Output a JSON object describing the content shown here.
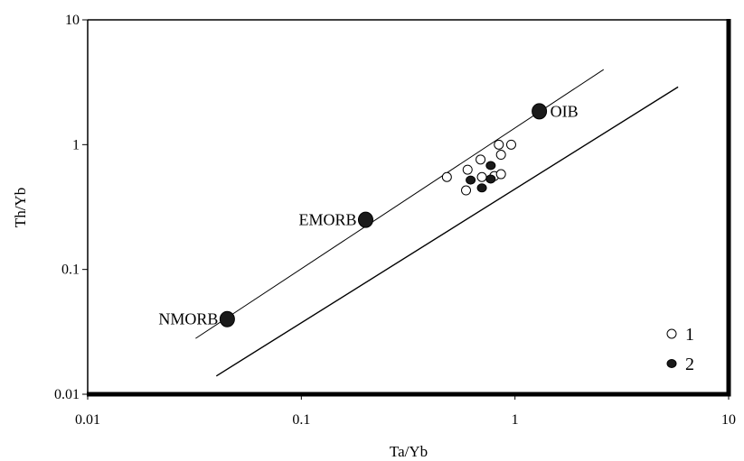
{
  "chart_data": {
    "type": "scatter",
    "title": "",
    "xlabel": "Ta/Yb",
    "ylabel": "Th/Yb",
    "x_scale": "log",
    "y_scale": "log",
    "xlim": [
      0.01,
      10
    ],
    "ylim": [
      0.01,
      10
    ],
    "x_ticks": [
      {
        "value": 0.01,
        "label": "0.01"
      },
      {
        "value": 0.1,
        "label": "0.1"
      },
      {
        "value": 1,
        "label": "1"
      },
      {
        "value": 10,
        "label": "10"
      }
    ],
    "y_ticks": [
      {
        "value": 0.01,
        "label": "0.01"
      },
      {
        "value": 0.1,
        "label": "0.1"
      },
      {
        "value": 1,
        "label": "1"
      },
      {
        "value": 10,
        "label": "10"
      }
    ],
    "grid": false,
    "legend_position": "bottom-right",
    "lines": [
      {
        "from": [
          0.032,
          0.028
        ],
        "to": [
          2.6,
          4.0
        ]
      },
      {
        "from": [
          0.04,
          0.014
        ],
        "to": [
          5.8,
          2.9
        ]
      }
    ],
    "reference_points": [
      {
        "label": "NMORB",
        "x": 0.045,
        "y": 0.04
      },
      {
        "label": "EMORB",
        "x": 0.2,
        "y": 0.25
      },
      {
        "label": "OIB",
        "x": 1.3,
        "y": 1.85
      }
    ],
    "series": [
      {
        "name": "1",
        "marker": "open-circle",
        "points": [
          {
            "x": 0.48,
            "y": 0.55
          },
          {
            "x": 0.59,
            "y": 0.43
          },
          {
            "x": 0.6,
            "y": 0.63
          },
          {
            "x": 0.69,
            "y": 0.76
          },
          {
            "x": 0.7,
            "y": 0.55
          },
          {
            "x": 0.8,
            "y": 0.56
          },
          {
            "x": 0.84,
            "y": 1.0
          },
          {
            "x": 0.86,
            "y": 0.83
          },
          {
            "x": 0.86,
            "y": 0.58
          },
          {
            "x": 0.96,
            "y": 1.0
          }
        ]
      },
      {
        "name": "2",
        "marker": "filled-circle",
        "points": [
          {
            "x": 0.62,
            "y": 0.52
          },
          {
            "x": 0.7,
            "y": 0.45
          },
          {
            "x": 0.77,
            "y": 0.53
          },
          {
            "x": 0.77,
            "y": 0.68
          }
        ]
      }
    ]
  }
}
